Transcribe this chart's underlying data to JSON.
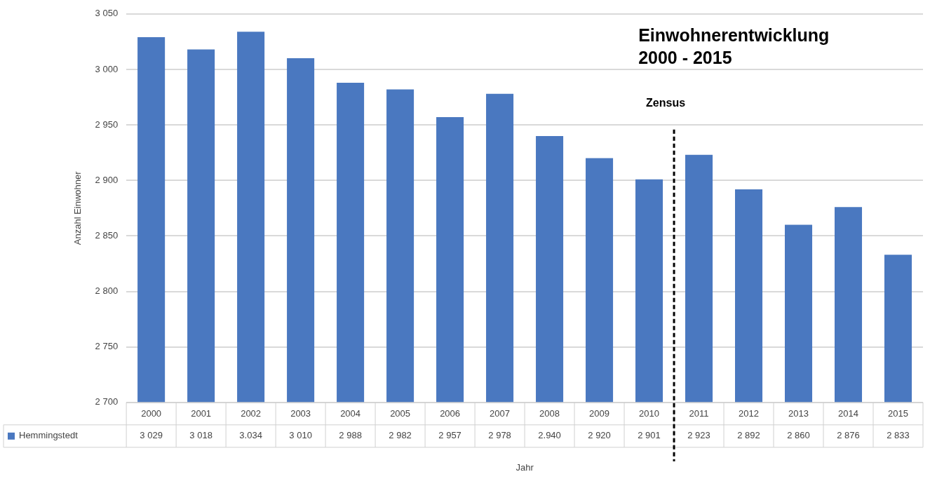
{
  "chart_data": {
    "type": "bar",
    "title": "Einwohnerentwicklung 2000 - 2015",
    "xlabel": "Jahr",
    "ylabel": "Anzahl Einwohner",
    "categories": [
      "2000",
      "2001",
      "2002",
      "2003",
      "2004",
      "2005",
      "2006",
      "2007",
      "2008",
      "2009",
      "2010",
      "2011",
      "2012",
      "2013",
      "2014",
      "2015"
    ],
    "series": [
      {
        "name": "Hemmingstedt",
        "color": "#4a78c0",
        "values": [
          3029,
          3018,
          3034,
          3010,
          2988,
          2982,
          2957,
          2978,
          2940,
          2920,
          2901,
          2923,
          2892,
          2860,
          2876,
          2833
        ],
        "value_labels": [
          "3 029",
          "3 018",
          "3.034",
          "3 010",
          "2 988",
          "2 982",
          "2 957",
          "2 978",
          "2.940",
          "2 920",
          "2 901",
          "2 923",
          "2 892",
          "2 860",
          "2 876",
          "2 833"
        ]
      }
    ],
    "ylim": [
      2700,
      3050
    ],
    "yticks": [
      {
        "value": 2700,
        "label": "2 700"
      },
      {
        "value": 2750,
        "label": "2 750"
      },
      {
        "value": 2800,
        "label": "2 800"
      },
      {
        "value": 2850,
        "label": "2 850"
      },
      {
        "value": 2900,
        "label": "2 900"
      },
      {
        "value": 2950,
        "label": "2 950"
      },
      {
        "value": 3000,
        "label": "3 000"
      },
      {
        "value": 3050,
        "label": "3 050"
      }
    ],
    "grid": "y",
    "legend": "bottom left",
    "ref_lines": [
      {
        "axis": "x",
        "value": "2011",
        "label": "Zensus",
        "color": "#000000",
        "line_style": "dashed"
      }
    ]
  }
}
